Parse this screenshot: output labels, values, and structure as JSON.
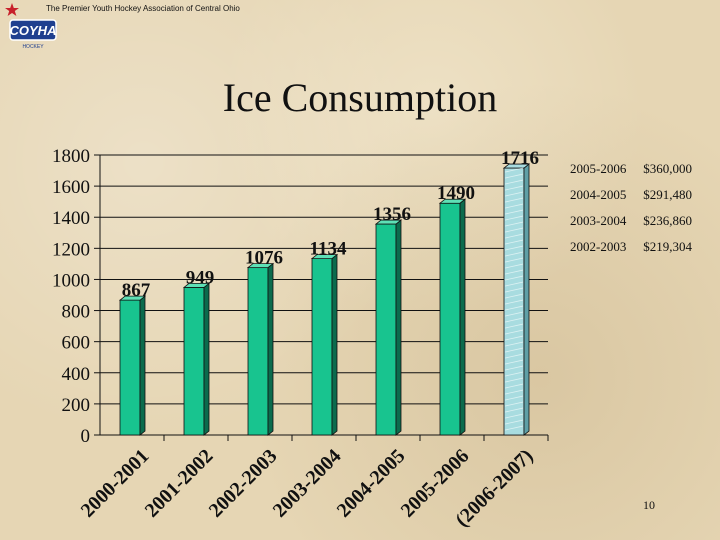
{
  "header": {
    "tagline": "The Premier Youth Hockey Association of Central Ohio",
    "logo_text": "COYHA",
    "logo_subtext": "HOCKEY"
  },
  "slide": {
    "title": "Ice Consumption",
    "page_number": "10"
  },
  "legend_items": [
    {
      "season": "2005-2006",
      "amount": "$360,000"
    },
    {
      "season": "2004-2005",
      "amount": "$291,480"
    },
    {
      "season": "2003-2004",
      "amount": "$236,860"
    },
    {
      "season": "2002-2003",
      "amount": "$219,304"
    }
  ],
  "colors": {
    "bar_front": "#18c48f",
    "bar_side": "#0b6b4d",
    "bar_top": "#5ee0b6",
    "projected_front": "#a8dce0",
    "projected_side": "#5f9fa6",
    "axis": "#111111"
  },
  "chart_data": {
    "type": "bar",
    "title": "",
    "categories": [
      "2000-2001",
      "2001-2002",
      "2002-2003",
      "2003-2004",
      "2004-2005",
      "2005-2006",
      "(2006-2007)"
    ],
    "values": [
      867,
      949,
      1076,
      1134,
      1356,
      1490,
      1716
    ],
    "data_labels": [
      "867",
      "949",
      "1076",
      "1134",
      "1356",
      "1490",
      "1716"
    ],
    "projected": [
      false,
      false,
      false,
      false,
      false,
      false,
      true
    ],
    "xlabel": "",
    "ylabel": "",
    "ylim": [
      0,
      1800
    ],
    "yticks": [
      0,
      200,
      400,
      600,
      800,
      1000,
      1200,
      1400,
      1600,
      1800
    ],
    "grid": true,
    "legend": "none"
  }
}
